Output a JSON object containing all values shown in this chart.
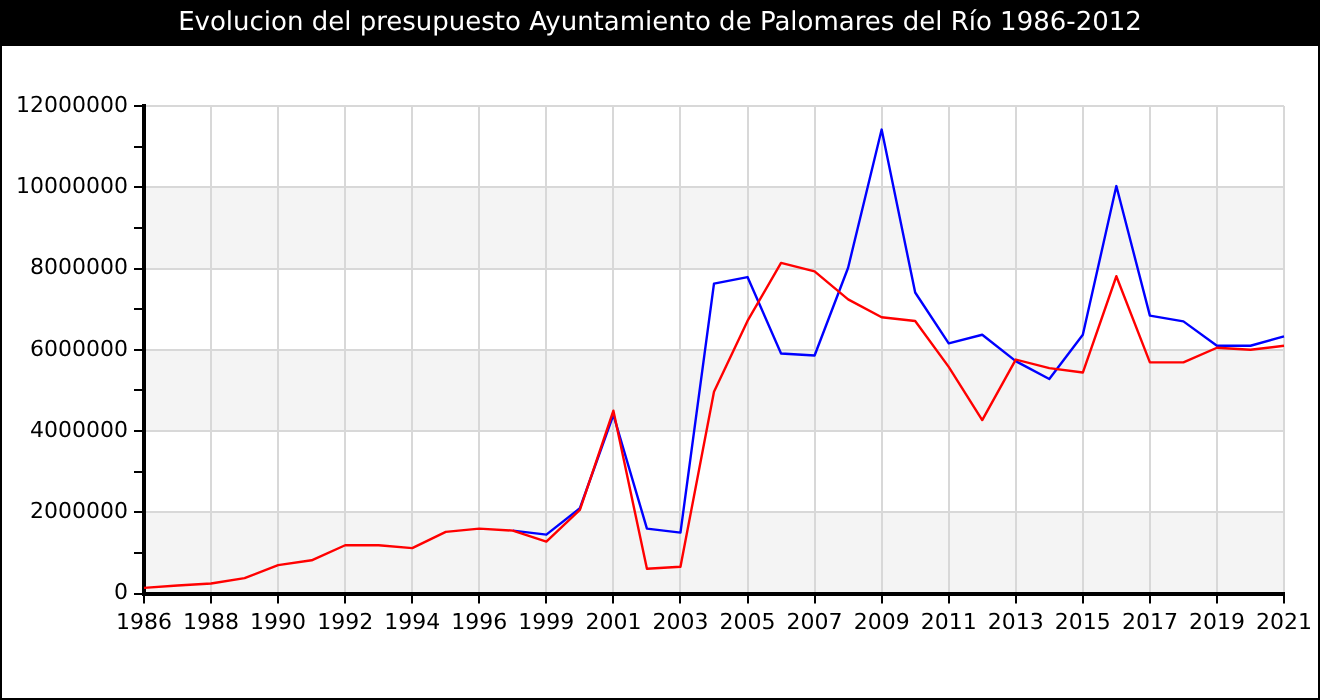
{
  "chart_data": {
    "type": "line",
    "title": "Evolucion del presupuesto Ayuntamiento de Palomares del Río 1986-2012",
    "categories": [
      "1986",
      null,
      "1988",
      null,
      "1990",
      null,
      "1992",
      null,
      "1994",
      null,
      "1996",
      null,
      "1999",
      null,
      "2001",
      null,
      "2003",
      null,
      "2005",
      null,
      "2007",
      null,
      "2009",
      null,
      "2011",
      null,
      "2013",
      null,
      "2015",
      null,
      "2017",
      null,
      "2019",
      null,
      "2021"
    ],
    "series": [
      {
        "color": "#0000ff",
        "values": [
          null,
          null,
          null,
          null,
          null,
          null,
          null,
          null,
          null,
          null,
          null,
          1550000,
          1450000,
          2100000,
          4400000,
          1600000,
          1500000,
          7630000,
          7790000,
          5910000,
          5860000,
          8020000,
          11420000,
          7410000,
          6160000,
          6370000,
          5720000,
          5280000,
          6370000,
          10030000,
          6840000,
          6700000,
          6100000,
          6100000,
          6330000
        ]
      },
      {
        "color": "#ff0000",
        "values": [
          140000,
          200000,
          250000,
          380000,
          700000,
          820000,
          1190000,
          1190000,
          1120000,
          1520000,
          1600000,
          1550000,
          1280000,
          2060000,
          4500000,
          610000,
          660000,
          4970000,
          6710000,
          8140000,
          7930000,
          7240000,
          6800000,
          6710000,
          5580000,
          4270000,
          5760000,
          5550000,
          5440000,
          7810000,
          5690000,
          5690000,
          6050000,
          6000000,
          6100000
        ]
      }
    ],
    "ylim": [
      0,
      12000000
    ],
    "yticks": [
      0,
      {
        "value": 1000000,
        "label": null
      },
      2000000,
      {
        "value": 3000000,
        "label": null
      },
      4000000,
      {
        "value": 5000000,
        "label": null
      },
      6000000,
      {
        "value": 7000000,
        "label": null
      },
      8000000,
      {
        "value": 9000000,
        "label": null
      },
      10000000,
      {
        "value": 11000000,
        "label": null
      },
      12000000
    ],
    "grid": true,
    "legend": false,
    "marker": "none",
    "line_style": "solid"
  }
}
